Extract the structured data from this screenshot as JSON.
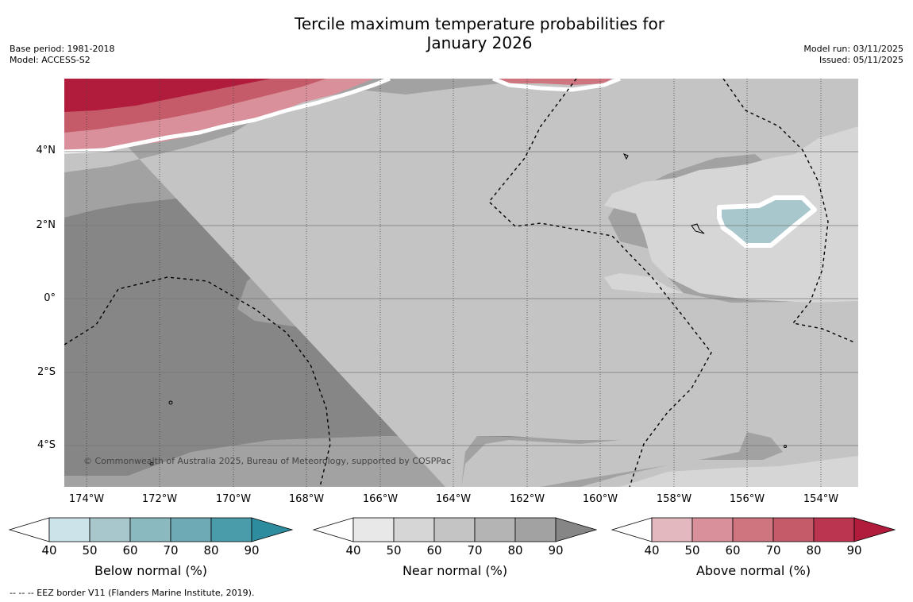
{
  "title_line1": "Tercile maximum temperature probabilities for",
  "title_line2": "January 2026",
  "meta_left": [
    "Base period: 1981-2018",
    "Model: ACCESS-S2"
  ],
  "meta_right": [
    "Model run: 03/11/2025",
    "Issued: 05/11/2025"
  ],
  "copyright": "© Commonwealth of Australia 2025, Bureau of Meteorology, supported by COSPPac",
  "lat_labels": [
    "4°N",
    "2°N",
    "0°",
    "2°S",
    "4°S"
  ],
  "lon_labels": [
    "174°W",
    "172°W",
    "170°W",
    "168°W",
    "166°W",
    "164°W",
    "162°W",
    "160°W",
    "158°W",
    "156°W",
    "154°W"
  ],
  "colorbars": [
    {
      "title": "Below normal (%)",
      "ticks": [
        "40",
        "50",
        "60",
        "70",
        "80",
        "90"
      ],
      "colors": [
        "#cbe3e9",
        "#a8c7cc",
        "#8bb9c0",
        "#6ea9b6",
        "#4a9cab",
        "#2e8c9f"
      ]
    },
    {
      "title": "Near normal (%)",
      "ticks": [
        "40",
        "50",
        "60",
        "70",
        "80",
        "90"
      ],
      "colors": [
        "#e8e8e8",
        "#d6d6d6",
        "#c4c4c4",
        "#b4b4b4",
        "#a2a2a2",
        "#868686"
      ]
    },
    {
      "title": "Above normal (%)",
      "ticks": [
        "40",
        "50",
        "60",
        "70",
        "80",
        "90"
      ],
      "colors": [
        "#e3b8bf",
        "#d9909b",
        "#cf7580",
        "#c55a69",
        "#bb3550",
        "#b11c3c"
      ]
    }
  ],
  "footnote": "--  --  -- EEZ border V11 (Flanders Marine Institute, 2019)."
}
